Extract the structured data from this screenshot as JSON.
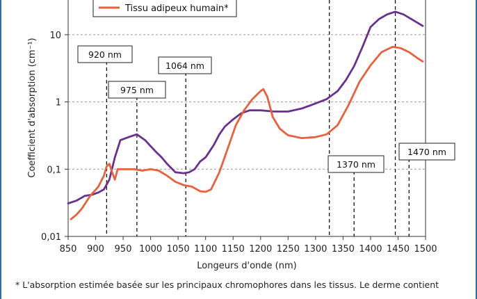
{
  "chart_data": {
    "type": "line",
    "title": "",
    "xlabel": "Longeurs d'onde (nm)",
    "ylabel": "Coefficient d'absorption (cm⁻¹)",
    "xlim": [
      850,
      1500
    ],
    "ylim": [
      0.01,
      40
    ],
    "yscale": "log",
    "grid": "horizontal dashed",
    "x_ticks": [
      "850",
      "900",
      "950",
      "1000",
      "1050",
      "1100",
      "1150",
      "1200",
      "1250",
      "1300",
      "1350",
      "1400",
      "1450",
      "1500"
    ],
    "y_ticks": [
      {
        "value": 0.01,
        "label": "0,01"
      },
      {
        "value": 0.1,
        "label": "0,1"
      },
      {
        "value": 1,
        "label": "1"
      },
      {
        "value": 10,
        "label": "10"
      }
    ],
    "legend": {
      "placement": "top-left",
      "entries": [
        {
          "name": "Tissu adipeux humain*",
          "color": "#e8613a"
        }
      ]
    },
    "series": [
      {
        "name": "",
        "color": "#6a2f8f",
        "points": [
          [
            850,
            0.031
          ],
          [
            865,
            0.034
          ],
          [
            880,
            0.04
          ],
          [
            895,
            0.042
          ],
          [
            905,
            0.045
          ],
          [
            915,
            0.05
          ],
          [
            925,
            0.07
          ],
          [
            935,
            0.15
          ],
          [
            945,
            0.27
          ],
          [
            960,
            0.3
          ],
          [
            975,
            0.33
          ],
          [
            990,
            0.27
          ],
          [
            1000,
            0.22
          ],
          [
            1010,
            0.18
          ],
          [
            1020,
            0.15
          ],
          [
            1030,
            0.12
          ],
          [
            1045,
            0.09
          ],
          [
            1060,
            0.087
          ],
          [
            1070,
            0.09
          ],
          [
            1080,
            0.1
          ],
          [
            1090,
            0.13
          ],
          [
            1100,
            0.15
          ],
          [
            1115,
            0.23
          ],
          [
            1125,
            0.33
          ],
          [
            1135,
            0.43
          ],
          [
            1150,
            0.55
          ],
          [
            1165,
            0.68
          ],
          [
            1180,
            0.75
          ],
          [
            1200,
            0.75
          ],
          [
            1225,
            0.72
          ],
          [
            1250,
            0.72
          ],
          [
            1275,
            0.8
          ],
          [
            1300,
            0.95
          ],
          [
            1320,
            1.1
          ],
          [
            1340,
            1.45
          ],
          [
            1355,
            2.1
          ],
          [
            1370,
            3.4
          ],
          [
            1385,
            6.5
          ],
          [
            1400,
            13
          ],
          [
            1415,
            17
          ],
          [
            1430,
            20
          ],
          [
            1445,
            22
          ],
          [
            1460,
            20
          ],
          [
            1480,
            16
          ],
          [
            1495,
            13.5
          ]
        ]
      },
      {
        "name": "Tissu adipeux humain*",
        "color": "#e8613a",
        "points": [
          [
            855,
            0.018
          ],
          [
            865,
            0.021
          ],
          [
            875,
            0.026
          ],
          [
            890,
            0.04
          ],
          [
            905,
            0.055
          ],
          [
            915,
            0.08
          ],
          [
            920,
            0.11
          ],
          [
            925,
            0.12
          ],
          [
            930,
            0.09
          ],
          [
            935,
            0.07
          ],
          [
            940,
            0.1
          ],
          [
            955,
            0.1
          ],
          [
            970,
            0.1
          ],
          [
            985,
            0.095
          ],
          [
            1000,
            0.1
          ],
          [
            1015,
            0.095
          ],
          [
            1030,
            0.08
          ],
          [
            1045,
            0.065
          ],
          [
            1060,
            0.058
          ],
          [
            1075,
            0.055
          ],
          [
            1090,
            0.047
          ],
          [
            1100,
            0.046
          ],
          [
            1110,
            0.05
          ],
          [
            1125,
            0.09
          ],
          [
            1140,
            0.2
          ],
          [
            1155,
            0.45
          ],
          [
            1170,
            0.75
          ],
          [
            1185,
            1.1
          ],
          [
            1200,
            1.45
          ],
          [
            1205,
            1.55
          ],
          [
            1212,
            1.2
          ],
          [
            1222,
            0.6
          ],
          [
            1235,
            0.4
          ],
          [
            1250,
            0.32
          ],
          [
            1275,
            0.29
          ],
          [
            1300,
            0.3
          ],
          [
            1320,
            0.33
          ],
          [
            1340,
            0.45
          ],
          [
            1360,
            0.9
          ],
          [
            1380,
            2
          ],
          [
            1400,
            3.5
          ],
          [
            1420,
            5.5
          ],
          [
            1440,
            6.6
          ],
          [
            1455,
            6.3
          ],
          [
            1470,
            5.5
          ],
          [
            1485,
            4.5
          ],
          [
            1495,
            4
          ]
        ]
      }
    ],
    "annotations": [
      {
        "label": "920 nm",
        "x": 920
      },
      {
        "label": "975 nm",
        "x": 975
      },
      {
        "label": "1064 nm",
        "x": 1064
      },
      {
        "label": "1370 nm",
        "x": 1370
      },
      {
        "label": "1470 nm",
        "x": 1470
      }
    ],
    "extra_dashed_lines": [
      1325,
      1445
    ]
  },
  "footnote": {
    "line1": "* L'absorption estimée basée sur les principaux chromophores dans les tissus. Le derme contient",
    "line2": "... ... ... ..."
  },
  "colors": {
    "frame": "#2f6fa6",
    "grid": "#999999",
    "purple": "#6a2f8f",
    "orange": "#e8613a"
  }
}
